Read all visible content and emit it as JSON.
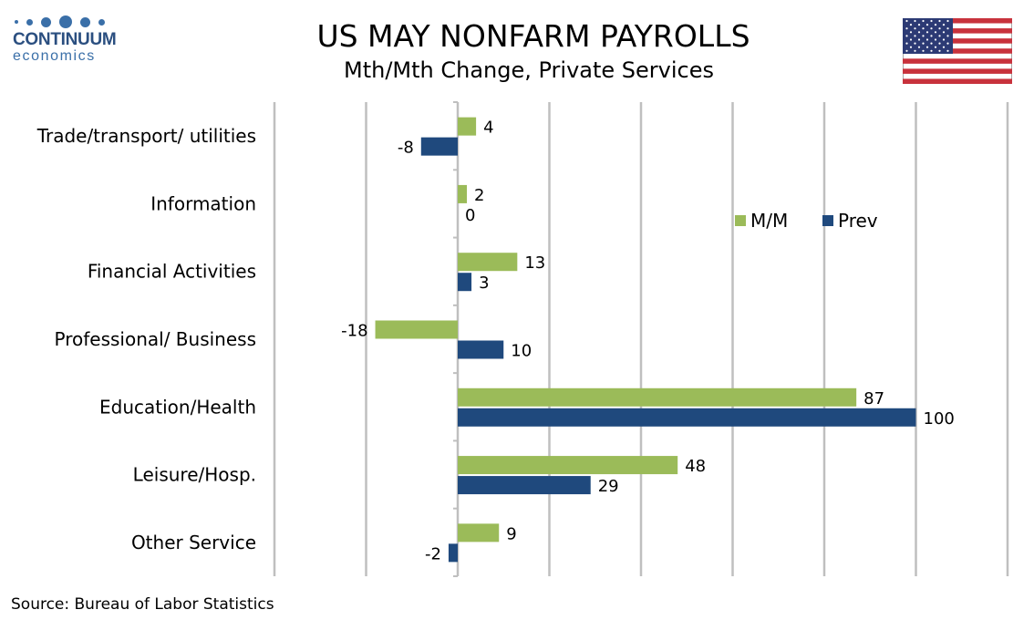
{
  "title": "US MAY NONFARM PAYROLLS",
  "subtitle": "Mth/Mth Change, Private Services",
  "logo": {
    "brand": "CONTINUUM",
    "tagline": "economics",
    "color": "#2b4f80"
  },
  "flag_icon": "us-flag-icon",
  "source": "Source: Bureau of Labor Statistics",
  "chart_data": {
    "type": "bar",
    "orientation": "horizontal",
    "categories": [
      "Trade/transport/ utilities",
      "Information",
      "Financial Activities",
      "Professional/ Business",
      "Education/Health",
      "Leisure/Hosp.",
      "Other Service"
    ],
    "series": [
      {
        "name": "M/M",
        "color": "#9bbb59",
        "values": [
          4,
          2,
          13,
          -18,
          87,
          48,
          9
        ]
      },
      {
        "name": "Prev",
        "color": "#1f497d",
        "values": [
          -8,
          0,
          3,
          10,
          100,
          29,
          -2
        ]
      }
    ],
    "xlim": [
      -40,
      120
    ],
    "x_gridlines": [
      -40,
      -20,
      0,
      20,
      40,
      60,
      80,
      100,
      120
    ],
    "grid": true,
    "data_labels": true,
    "legend_position": "right"
  }
}
